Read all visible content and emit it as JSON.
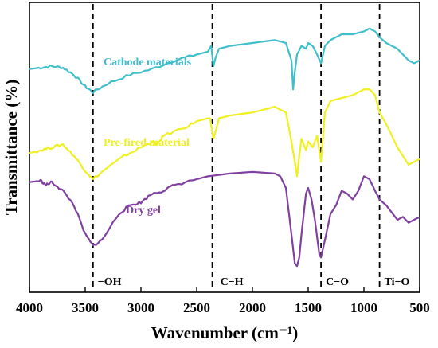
{
  "chart_data": {
    "type": "line",
    "title": "",
    "xlabel": "Wavenumber (cm⁻¹)",
    "ylabel": "Transmittance (%)",
    "xlim": [
      4000,
      500
    ],
    "x_reversed": true,
    "y_ticks": false,
    "grid": false,
    "xticks": [
      4000,
      3500,
      3000,
      2500,
      2000,
      1500,
      1000,
      500
    ],
    "tick_labels": [
      "4000",
      "3500",
      "3000",
      "2500",
      "2000",
      "1500",
      "1000",
      "500"
    ],
    "ylim": [
      0,
      100
    ],
    "reference_lines": [
      {
        "x": 3430,
        "label": "−OH"
      },
      {
        "x": 2360,
        "label": "C−H"
      },
      {
        "x": 1385,
        "label": "C−O"
      },
      {
        "x": 860,
        "label": "Ti−O"
      }
    ],
    "series": [
      {
        "name": "Cathode materials",
        "color": "#40BFCB",
        "points": [
          [
            4000,
            77
          ],
          [
            3900,
            77.5
          ],
          [
            3800,
            78
          ],
          [
            3700,
            77.5
          ],
          [
            3600,
            75
          ],
          [
            3500,
            71
          ],
          [
            3430,
            69
          ],
          [
            3300,
            72
          ],
          [
            3100,
            75
          ],
          [
            2900,
            77
          ],
          [
            2700,
            80
          ],
          [
            2500,
            82
          ],
          [
            2400,
            83
          ],
          [
            2370,
            85
          ],
          [
            2350,
            78
          ],
          [
            2330,
            81
          ],
          [
            2300,
            84
          ],
          [
            2200,
            85
          ],
          [
            2000,
            86
          ],
          [
            1800,
            87
          ],
          [
            1700,
            86
          ],
          [
            1650,
            80
          ],
          [
            1635,
            70
          ],
          [
            1620,
            76
          ],
          [
            1600,
            82
          ],
          [
            1560,
            85
          ],
          [
            1520,
            84
          ],
          [
            1500,
            86
          ],
          [
            1460,
            85
          ],
          [
            1420,
            82
          ],
          [
            1385,
            79
          ],
          [
            1350,
            85
          ],
          [
            1300,
            87
          ],
          [
            1200,
            89
          ],
          [
            1100,
            89
          ],
          [
            1000,
            90
          ],
          [
            950,
            91
          ],
          [
            900,
            90
          ],
          [
            860,
            88
          ],
          [
            800,
            86
          ],
          [
            700,
            84
          ],
          [
            600,
            80
          ],
          [
            550,
            79
          ],
          [
            500,
            80
          ]
        ]
      },
      {
        "name": "Pre-fired material",
        "color": "#F0F020",
        "points": [
          [
            4000,
            48
          ],
          [
            3900,
            49
          ],
          [
            3800,
            50
          ],
          [
            3700,
            51
          ],
          [
            3600,
            47
          ],
          [
            3500,
            42
          ],
          [
            3430,
            39
          ],
          [
            3300,
            43
          ],
          [
            3150,
            47
          ],
          [
            3000,
            50
          ],
          [
            2900,
            52
          ],
          [
            2850,
            51
          ],
          [
            2800,
            54
          ],
          [
            2600,
            57
          ],
          [
            2500,
            59
          ],
          [
            2400,
            60
          ],
          [
            2380,
            60
          ],
          [
            2350,
            53
          ],
          [
            2320,
            57
          ],
          [
            2300,
            60
          ],
          [
            2200,
            61
          ],
          [
            2000,
            62
          ],
          [
            1800,
            64
          ],
          [
            1700,
            62
          ],
          [
            1650,
            52
          ],
          [
            1620,
            45
          ],
          [
            1600,
            40
          ],
          [
            1580,
            47
          ],
          [
            1560,
            53
          ],
          [
            1520,
            49
          ],
          [
            1500,
            52
          ],
          [
            1460,
            50
          ],
          [
            1420,
            54
          ],
          [
            1385,
            45
          ],
          [
            1370,
            52
          ],
          [
            1350,
            62
          ],
          [
            1300,
            66
          ],
          [
            1200,
            67
          ],
          [
            1100,
            68
          ],
          [
            1000,
            70
          ],
          [
            950,
            70
          ],
          [
            900,
            68
          ],
          [
            860,
            62
          ],
          [
            800,
            58
          ],
          [
            700,
            50
          ],
          [
            600,
            44
          ],
          [
            550,
            45
          ],
          [
            500,
            46
          ]
        ]
      },
      {
        "name": "Dry gel",
        "color": "#8040A0",
        "points": [
          [
            4000,
            38
          ],
          [
            3900,
            38.5
          ],
          [
            3850,
            37
          ],
          [
            3800,
            38
          ],
          [
            3700,
            35
          ],
          [
            3600,
            30
          ],
          [
            3500,
            20
          ],
          [
            3430,
            16
          ],
          [
            3350,
            18
          ],
          [
            3200,
            27
          ],
          [
            3100,
            30
          ],
          [
            3000,
            31
          ],
          [
            2900,
            34
          ],
          [
            2800,
            35
          ],
          [
            2700,
            37
          ],
          [
            2500,
            39
          ],
          [
            2400,
            40
          ],
          [
            2200,
            41
          ],
          [
            2000,
            41.5
          ],
          [
            1800,
            41
          ],
          [
            1750,
            40
          ],
          [
            1700,
            36
          ],
          [
            1650,
            20
          ],
          [
            1620,
            10
          ],
          [
            1600,
            9
          ],
          [
            1580,
            12
          ],
          [
            1560,
            20
          ],
          [
            1520,
            34
          ],
          [
            1500,
            36
          ],
          [
            1470,
            32
          ],
          [
            1440,
            25
          ],
          [
            1400,
            13
          ],
          [
            1385,
            12
          ],
          [
            1350,
            18
          ],
          [
            1300,
            27
          ],
          [
            1250,
            30
          ],
          [
            1200,
            35
          ],
          [
            1150,
            34
          ],
          [
            1100,
            32
          ],
          [
            1050,
            35
          ],
          [
            1000,
            40
          ],
          [
            950,
            39
          ],
          [
            900,
            35
          ],
          [
            860,
            32
          ],
          [
            800,
            30
          ],
          [
            700,
            25
          ],
          [
            650,
            26
          ],
          [
            600,
            24
          ],
          [
            550,
            25
          ],
          [
            500,
            26
          ]
        ]
      }
    ]
  }
}
